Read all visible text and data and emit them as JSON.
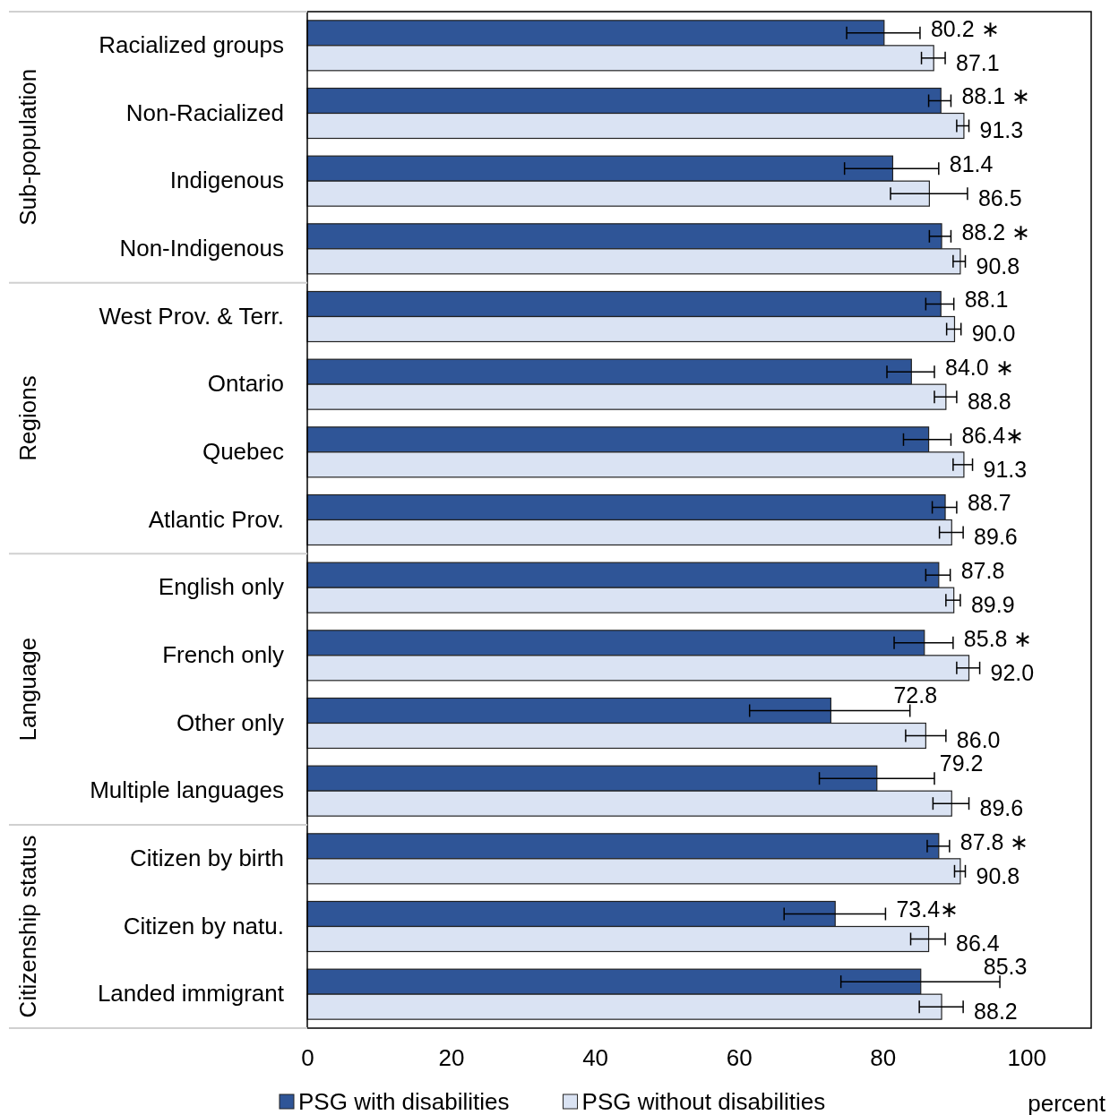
{
  "chart_data": {
    "type": "bar",
    "orientation": "horizontal",
    "categories": [
      "Racialized groups",
      "Non-Racialized",
      "Indigenous",
      "Non-Indigenous",
      "West Prov. & Terr.",
      "Ontario",
      "Quebec",
      "Atlantic Prov.",
      "English only",
      "French only",
      "Other only",
      "Multiple languages",
      "Citizen by birth",
      "Citizen by natu.",
      "Landed immigrant"
    ],
    "series": [
      {
        "name": "PSG with disabilities",
        "color": "#2f5597",
        "values": [
          80.2,
          88.1,
          81.4,
          88.2,
          88.1,
          84.0,
          86.4,
          88.7,
          87.8,
          85.8,
          72.8,
          79.2,
          87.8,
          73.4,
          85.3
        ],
        "value_labels": [
          "80.2 ∗",
          "88.1 ∗",
          "81.4",
          "88.2 ∗",
          "88.1",
          "84.0 ∗",
          "86.4∗",
          "88.7",
          "87.8",
          "85.8 ∗",
          "72.8",
          "79.2",
          "87.8 ∗",
          "73.4∗",
          "85.3"
        ],
        "errors": [
          [
            75.0,
            85.2
          ],
          [
            86.4,
            89.5
          ],
          [
            74.7,
            87.8
          ],
          [
            86.5,
            89.5
          ],
          [
            86.0,
            89.9
          ],
          [
            80.6,
            87.2
          ],
          [
            82.9,
            89.5
          ],
          [
            86.9,
            90.3
          ],
          [
            86.0,
            89.4
          ],
          [
            81.6,
            89.8
          ],
          [
            61.5,
            83.8
          ],
          [
            71.2,
            87.2
          ],
          [
            86.2,
            89.3
          ],
          [
            66.3,
            80.4
          ],
          [
            74.2,
            96.3
          ]
        ]
      },
      {
        "name": "PSG without disabilities",
        "color": "#dae3f3",
        "values": [
          87.1,
          91.3,
          86.5,
          90.8,
          90.0,
          88.8,
          91.3,
          89.6,
          89.9,
          92.0,
          86.0,
          89.6,
          90.8,
          86.4,
          88.2
        ],
        "value_labels": [
          "87.1",
          "91.3",
          "86.5",
          "90.8",
          "90.0",
          "88.8",
          "91.3",
          "89.6",
          "89.9",
          "92.0",
          "86.0",
          "89.6",
          "90.8",
          "86.4",
          "88.2"
        ],
        "errors": [
          [
            85.4,
            88.7
          ],
          [
            90.3,
            92.0
          ],
          [
            81.1,
            91.8
          ],
          [
            89.8,
            91.5
          ],
          [
            88.9,
            90.9
          ],
          [
            87.2,
            90.3
          ],
          [
            89.8,
            92.5
          ],
          [
            87.9,
            91.2
          ],
          [
            88.8,
            90.8
          ],
          [
            90.3,
            93.5
          ],
          [
            83.2,
            88.8
          ],
          [
            87.0,
            92.0
          ],
          [
            90.0,
            91.5
          ],
          [
            83.9,
            88.7
          ],
          [
            85.1,
            91.2
          ]
        ]
      }
    ],
    "xlim": [
      0,
      109
    ],
    "xticks": [
      0,
      20,
      40,
      60,
      80,
      100
    ],
    "xlabel": "percent",
    "annotations": [
      "Sub-population",
      "Regions",
      "Language",
      "Citizenship status"
    ],
    "grid": false,
    "legend": "bottom"
  }
}
